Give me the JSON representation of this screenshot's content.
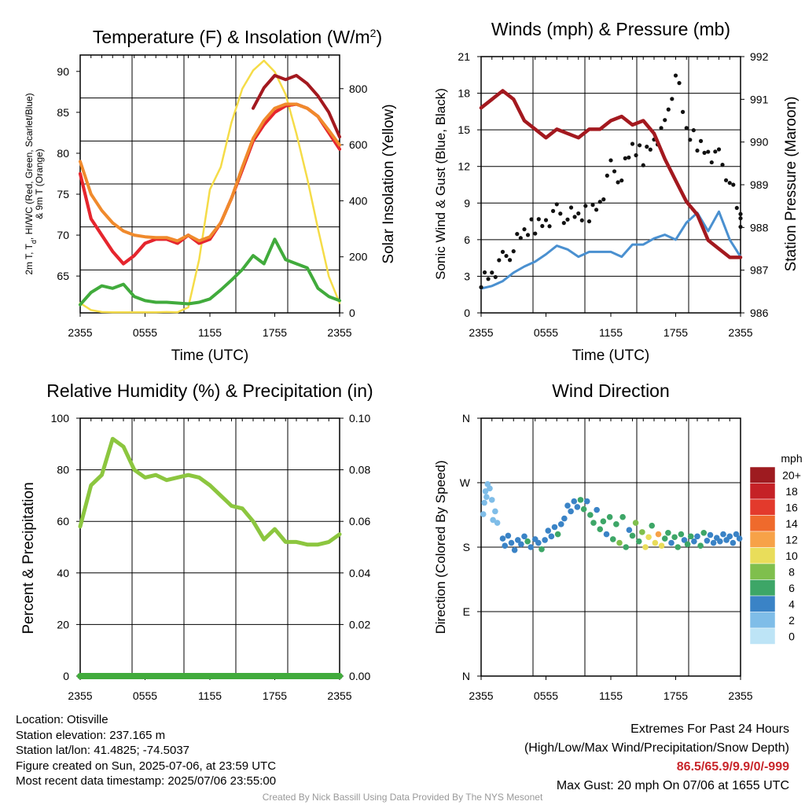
{
  "chart_data": [
    {
      "type": "line",
      "title": "Temperature (F) & Insolation (W/m",
      "title_sup": "2",
      "title_close": ")",
      "xlabel": "Time (UTC)",
      "ylabel_main": "2m T, T",
      "ylabel_sub": "d",
      "ylabel_rest": ", HI/WC (Red, Green, Scarlet/Blue)",
      "ylabel_line2": "& 9m T (Orange)",
      "ylabel_right": "Solar Insolation (Yellow)",
      "x_ticks": [
        "2355",
        "0555",
        "1155",
        "1755",
        "2355"
      ],
      "y_ticks": [
        "65",
        "70",
        "75",
        "80",
        "85",
        "90"
      ],
      "y2_ticks": [
        "0",
        "200",
        "400",
        "600",
        "800"
      ],
      "x": [
        0,
        1,
        2,
        3,
        4,
        5,
        6,
        7,
        8,
        9,
        10,
        11,
        12,
        13,
        14,
        15,
        16,
        17,
        18,
        19,
        20,
        21,
        22,
        23,
        24
      ],
      "ylim": [
        60.5,
        92
      ],
      "y2lim": [
        0,
        920
      ],
      "series": [
        {
          "values": [
            77.5,
            72,
            70,
            68,
            66.5,
            67.5,
            69,
            69.5,
            69.5,
            69,
            70,
            69,
            69.5,
            71.5,
            74.5,
            78,
            81.5,
            83.5,
            85,
            85.8,
            86,
            85.5,
            84.5,
            82.5,
            80.5
          ],
          "color": "#d2232a"
        },
        {
          "values": [
            61.5,
            63,
            63.8,
            63.5,
            64,
            62.5,
            62,
            61.8,
            61.8,
            61.7,
            61.6,
            61.8,
            62.2,
            63.3,
            64.5,
            65.8,
            67.5,
            66.5,
            69.5,
            67,
            66.5,
            66,
            63.5,
            62.5,
            62
          ],
          "color": "#41ab3c"
        },
        {
          "values": [
            77.5,
            72,
            70,
            68,
            66.5,
            67.5,
            69,
            69.5,
            69.5,
            69,
            70,
            69,
            69.5,
            71.5,
            74.5,
            78,
            81.5,
            83.5,
            85,
            85.8,
            86,
            85.5,
            84.5,
            82.5,
            80.5
          ],
          "color": "#e6262e"
        },
        {
          "values": [
            79,
            75,
            73,
            71.5,
            70.5,
            70,
            69.8,
            69.7,
            69.7,
            69.3,
            70,
            69.3,
            69.8,
            71.5,
            74.5,
            78.3,
            81.8,
            84,
            85.5,
            86,
            86,
            85.5,
            84.5,
            82.8,
            81
          ],
          "color": "#f08a2c"
        },
        {
          "values": [
            null,
            null,
            null,
            null,
            null,
            null,
            null,
            null,
            null,
            null,
            null,
            null,
            null,
            null,
            null,
            null,
            85.5,
            88,
            89.5,
            89,
            89.5,
            88.5,
            87,
            85,
            82
          ],
          "color": "#a3191f"
        }
      ],
      "insolation_series": {
        "values": [
          35,
          10,
          3,
          2,
          2,
          2,
          2,
          2,
          3,
          2,
          20,
          190,
          440,
          520,
          680,
          800,
          865,
          900,
          860,
          780,
          640,
          480,
          300,
          130,
          35
        ],
        "color": "#f5dc48"
      }
    },
    {
      "type": "line",
      "title": "Winds (mph) & Pressure (mb)",
      "xlabel": "Time (UTC)",
      "ylabel": "Sonic Wind & Gust (Blue, Black)",
      "ylabel_right": "Station Pressure (Maroon)",
      "x_ticks": [
        "2355",
        "0555",
        "1155",
        "1755",
        "2355"
      ],
      "y_ticks": [
        "0",
        "3",
        "6",
        "9",
        "12",
        "15",
        "18",
        "21"
      ],
      "y2_ticks": [
        "986",
        "987",
        "988",
        "989",
        "990",
        "991",
        "992"
      ],
      "x": [
        0,
        1,
        2,
        3,
        4,
        5,
        6,
        7,
        8,
        9,
        10,
        11,
        12,
        13,
        14,
        15,
        16,
        17,
        18,
        19,
        20,
        21,
        22,
        23,
        24
      ],
      "ylim": [
        0,
        21
      ],
      "y2lim": [
        986,
        992
      ],
      "wind": [
        2,
        2.2,
        2.6,
        3.3,
        3.8,
        4.2,
        4.8,
        5.5,
        5.2,
        4.6,
        5,
        5,
        5,
        4.6,
        5.6,
        5.6,
        6.1,
        6.4,
        6,
        7.4,
        8.2,
        6.7,
        8.3,
        6,
        4.6
      ],
      "gust": [
        2.8,
        3.3,
        4.3,
        5.4,
        6.5,
        7.2,
        7.6,
        8.2,
        8,
        7.8,
        8.2,
        9.1,
        11.8,
        11.2,
        13.5,
        12.8,
        14.2,
        15.1,
        19.8,
        14.8,
        14,
        13.2,
        12.7,
        11,
        7.4
      ],
      "pressure": [
        990.8,
        991,
        991.2,
        991,
        990.5,
        990.3,
        990.1,
        990.3,
        990.2,
        990.1,
        990.3,
        990.3,
        990.5,
        990.6,
        990.4,
        990.5,
        990.2,
        989.6,
        989.1,
        988.6,
        988.3,
        987.7,
        987.5,
        987.3,
        987.3
      ],
      "wind_color": "#4a90d0",
      "gust_color": "#111111",
      "pressure_color": "#a3191f"
    },
    {
      "type": "line",
      "title": "Relative Humidity (%) & Precipitation (in)",
      "ylabel": "Percent & Precipitation",
      "x_ticks": [
        "2355",
        "0555",
        "1155",
        "1755",
        "2355"
      ],
      "y_ticks": [
        "0",
        "20",
        "40",
        "60",
        "80",
        "100"
      ],
      "y2_ticks": [
        "0.00",
        "0.02",
        "0.04",
        "0.06",
        "0.08",
        "0.10"
      ],
      "x": [
        0,
        1,
        2,
        3,
        4,
        5,
        6,
        7,
        8,
        9,
        10,
        11,
        12,
        13,
        14,
        15,
        16,
        17,
        18,
        19,
        20,
        21,
        22,
        23,
        24
      ],
      "ylim": [
        0,
        100
      ],
      "y2lim": [
        0,
        0.1
      ],
      "rh": [
        58,
        74,
        78,
        92,
        89,
        80,
        77,
        78,
        76,
        77,
        78,
        77,
        74,
        70,
        66,
        65,
        60,
        53,
        57,
        52,
        52,
        51,
        51,
        52,
        55
      ],
      "precip": [
        0,
        0,
        0,
        0,
        0,
        0,
        0,
        0,
        0,
        0,
        0,
        0,
        0,
        0,
        0,
        0,
        0,
        0,
        0,
        0,
        0,
        0,
        0,
        0,
        0
      ],
      "rh_color": "#8cc63f",
      "precip_color": "#41ab3c"
    },
    {
      "type": "scatter",
      "title": "Wind Direction",
      "ylabel": "Direction (Colored By Speed)",
      "x_ticks": [
        "2355",
        "0555",
        "1155",
        "1755",
        "2355"
      ],
      "y_ticks": [
        "N",
        "E",
        "S",
        "W",
        "N"
      ],
      "ylim": [
        0,
        360
      ],
      "points": [
        [
          0.2,
          226,
          2
        ],
        [
          0.3,
          242,
          2
        ],
        [
          0.4,
          258,
          2
        ],
        [
          0.5,
          250,
          2
        ],
        [
          0.6,
          268,
          2
        ],
        [
          0.8,
          262,
          2
        ],
        [
          1.0,
          246,
          2
        ],
        [
          1.1,
          218,
          1
        ],
        [
          1.3,
          230,
          2
        ],
        [
          1.5,
          214,
          2
        ],
        [
          2.0,
          192,
          3
        ],
        [
          2.2,
          182,
          3
        ],
        [
          2.5,
          196,
          4
        ],
        [
          2.8,
          186,
          3
        ],
        [
          3.1,
          176,
          4
        ],
        [
          3.4,
          190,
          3
        ],
        [
          3.7,
          184,
          4
        ],
        [
          4.0,
          195,
          3
        ],
        [
          4.3,
          188,
          5
        ],
        [
          4.6,
          180,
          4
        ],
        [
          5.0,
          191,
          3
        ],
        [
          5.3,
          186,
          4
        ],
        [
          5.6,
          177,
          6
        ],
        [
          5.9,
          190,
          4
        ],
        [
          6.2,
          203,
          4
        ],
        [
          6.5,
          195,
          3
        ],
        [
          6.8,
          208,
          4
        ],
        [
          7.1,
          198,
          5
        ],
        [
          7.4,
          212,
          4
        ],
        [
          7.7,
          220,
          3
        ],
        [
          8.0,
          238,
          3
        ],
        [
          8.3,
          230,
          4
        ],
        [
          8.6,
          244,
          4
        ],
        [
          8.9,
          236,
          4
        ],
        [
          9.2,
          246,
          5
        ],
        [
          9.5,
          233,
          6
        ],
        [
          9.8,
          244,
          4
        ],
        [
          10.1,
          225,
          5
        ],
        [
          10.4,
          214,
          6
        ],
        [
          10.7,
          232,
          4
        ],
        [
          11.0,
          205,
          5
        ],
        [
          11.3,
          216,
          6
        ],
        [
          11.6,
          198,
          4
        ],
        [
          11.9,
          222,
          6
        ],
        [
          12.2,
          191,
          5
        ],
        [
          12.5,
          212,
          6
        ],
        [
          12.8,
          186,
          7
        ],
        [
          13.1,
          222,
          5
        ],
        [
          13.4,
          180,
          6
        ],
        [
          13.7,
          204,
          4
        ],
        [
          14.0,
          196,
          6
        ],
        [
          14.3,
          214,
          7
        ],
        [
          14.6,
          188,
          6
        ],
        [
          14.9,
          201,
          8
        ],
        [
          15.2,
          180,
          10
        ],
        [
          15.5,
          194,
          9
        ],
        [
          15.8,
          210,
          6
        ],
        [
          16.1,
          186,
          9
        ],
        [
          16.4,
          198,
          11
        ],
        [
          16.7,
          182,
          9
        ],
        [
          17.0,
          192,
          5
        ],
        [
          17.3,
          200,
          6
        ],
        [
          17.6,
          186,
          4
        ],
        [
          17.9,
          194,
          6
        ],
        [
          18.2,
          180,
          5
        ],
        [
          18.5,
          198,
          6
        ],
        [
          18.8,
          190,
          3
        ],
        [
          19.1,
          184,
          6
        ],
        [
          19.4,
          195,
          5
        ],
        [
          19.7,
          188,
          4
        ],
        [
          20.0,
          195,
          4
        ],
        [
          20.3,
          182,
          6
        ],
        [
          20.6,
          200,
          5
        ],
        [
          20.9,
          189,
          4
        ],
        [
          21.2,
          197,
          3
        ],
        [
          21.5,
          186,
          4
        ],
        [
          21.8,
          193,
          3
        ],
        [
          22.1,
          188,
          4
        ],
        [
          22.4,
          198,
          3
        ],
        [
          22.7,
          190,
          4
        ],
        [
          23.0,
          195,
          3
        ],
        [
          23.3,
          186,
          4
        ],
        [
          23.6,
          198,
          3
        ],
        [
          23.9,
          192,
          4
        ]
      ],
      "colorbar_title": "mph",
      "colorbar_labels": [
        "20+",
        "18",
        "16",
        "14",
        "12",
        "10",
        "8",
        "6",
        "4",
        "2",
        "0"
      ],
      "colorbar_colors": [
        "#9e1b20",
        "#c52126",
        "#e33a2c",
        "#ef6a2c",
        "#f7a248",
        "#e9dd5a",
        "#7fbf4d",
        "#3da667",
        "#3a83c6",
        "#7fbde8",
        "#bde4f6"
      ]
    }
  ],
  "footer": {
    "location": "Location: Otisville",
    "elevation": "Station elevation: 237.165 m",
    "latlon": "Station lat/lon: 41.4825; -74.5037",
    "created": "Figure created on Sun, 2025-07-06, at 23:59 UTC",
    "recent": "Most recent data timestamp: 2025/07/06 23:55:00",
    "extremes_title": "Extremes For Past 24 Hours",
    "extremes_sub": "(High/Low/Max Wind/Precipitation/Snow Depth)",
    "extremes_values": "86.5/65.9/9.9/0/-999",
    "max_gust": "Max Gust: 20 mph On 07/06 at 1655 UTC",
    "credit": "Created By Nick Bassill Using Data Provided By The NYS Mesonet"
  }
}
